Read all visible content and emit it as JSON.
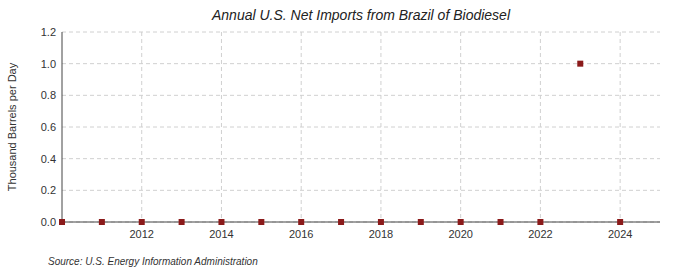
{
  "chart_data": {
    "type": "scatter",
    "title": "Annual U.S. Net Imports from Brazil of Biodiesel",
    "y_label": "Thousand Barrels per Day",
    "annotations": [
      "Source: U.S. Energy Information Administration"
    ],
    "x": [
      2010,
      2011,
      2012,
      2013,
      2014,
      2015,
      2016,
      2017,
      2018,
      2019,
      2020,
      2021,
      2022,
      2023,
      2024
    ],
    "values": [
      0.0,
      0.0,
      0.0,
      0.0,
      0.0,
      0.0,
      0.0,
      0.0,
      0.0,
      0.0,
      0.0,
      0.0,
      0.0,
      1.0,
      0.0
    ],
    "color": "#8b1a1a",
    "marker": "square",
    "xlim": [
      2010.0,
      2025.0
    ],
    "ylim": [
      0.0,
      1.2
    ],
    "xticks": [
      2012,
      2014,
      2016,
      2018,
      2020,
      2022,
      2024
    ],
    "yticks": [
      {
        "value": 0.0,
        "label": "0.0"
      },
      0.2,
      0.4,
      0.6,
      0.8,
      {
        "value": 1.0,
        "label": "1.0"
      },
      1.2
    ],
    "grid": true
  }
}
